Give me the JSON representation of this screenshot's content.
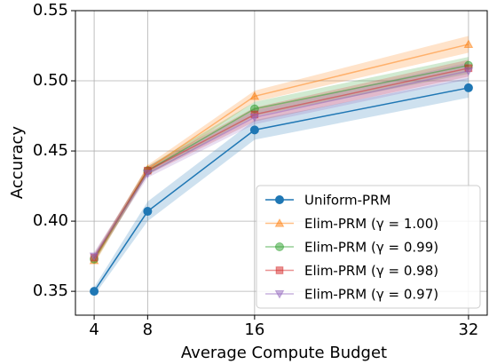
{
  "chart_data": {
    "type": "line",
    "x_label": "Average Compute Budget",
    "y_label": "Accuracy",
    "x": [
      4,
      8,
      16,
      32
    ],
    "xlim": [
      2.6,
      33.4
    ],
    "xticks": [
      4,
      8,
      16,
      32
    ],
    "ylim": [
      0.333,
      0.55
    ],
    "yticks": [
      {
        "value": 0.35,
        "label": "0.35"
      },
      {
        "value": 0.4,
        "label": "0.40"
      },
      {
        "value": 0.45,
        "label": "0.45"
      },
      {
        "value": 0.5,
        "label": "0.50"
      },
      {
        "value": 0.55,
        "label": "0.55"
      }
    ],
    "grid": true,
    "legend": "lower right",
    "series": [
      {
        "name": "Uniform-PRM",
        "color": "#1f77b4",
        "marker": "circle",
        "values": [
          0.35,
          0.407,
          0.465,
          0.495
        ],
        "err": [
          0.003,
          0.007,
          0.007,
          0.007
        ]
      },
      {
        "name": "Elim-PRM (γ = 1.00)",
        "color": "#ff7f0e",
        "marker": "triangle-up",
        "values": [
          0.372,
          0.437,
          0.489,
          0.526
        ],
        "err": [
          0.003,
          0.003,
          0.004,
          0.006
        ]
      },
      {
        "name": "Elim-PRM (γ = 0.99)",
        "color": "#2ca02c",
        "marker": "circle",
        "values": [
          0.373,
          0.436,
          0.48,
          0.511
        ],
        "err": [
          0.003,
          0.003,
          0.005,
          0.006
        ]
      },
      {
        "name": "Elim-PRM (γ = 0.98)",
        "color": "#d62728",
        "marker": "square",
        "values": [
          0.374,
          0.436,
          0.476,
          0.509
        ],
        "err": [
          0.003,
          0.003,
          0.005,
          0.006
        ]
      },
      {
        "name": "Elim-PRM (γ = 0.97)",
        "color": "#9467bd",
        "marker": "triangle-down",
        "values": [
          0.375,
          0.434,
          0.474,
          0.507
        ],
        "err": [
          0.003,
          0.003,
          0.005,
          0.006
        ]
      }
    ]
  }
}
